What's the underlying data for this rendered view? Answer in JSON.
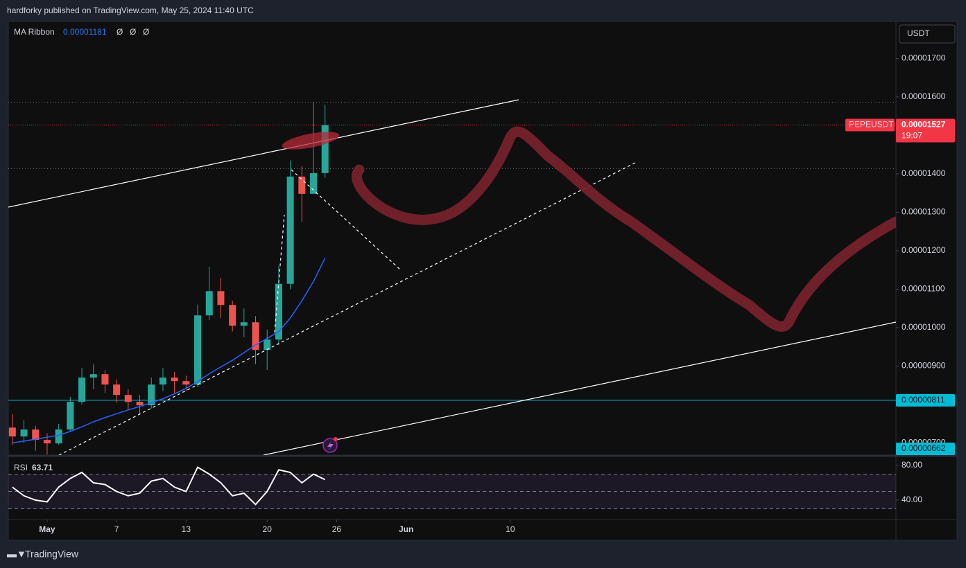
{
  "header": "hardforky published on TradingView.com, May 25, 2024 11:40 UTC",
  "footer": "TradingView",
  "currency": "USDT",
  "chart_data": [
    {
      "type": "candlestick",
      "x": [
        -2,
        -1,
        0,
        1,
        2,
        3,
        4,
        5,
        6,
        7,
        8,
        9,
        10,
        11,
        12,
        13,
        14,
        15,
        16,
        17,
        18,
        19,
        20,
        21,
        22,
        23,
        24,
        25
      ],
      "xlim": [
        -2.35,
        74.3
      ],
      "xticks": [
        {
          "value": 1,
          "label": "May"
        },
        7,
        13,
        20,
        26,
        {
          "value": 32,
          "label": "Jun"
        },
        {
          "value": 41,
          "label": "10"
        }
      ],
      "ylim": [
        6.685e-06,
        1.7964e-05
      ],
      "yticks": [
        {
          "value": 7e-06,
          "label": "0.00000700"
        },
        {
          "value": 9e-06,
          "label": "0.00000900"
        },
        {
          "value": 1e-05,
          "label": "0.00001000"
        },
        {
          "value": 1.1e-05,
          "label": "0.00001100"
        },
        {
          "value": 1.2e-05,
          "label": "0.00001200"
        },
        {
          "value": 1.3e-05,
          "label": "0.00001300"
        },
        {
          "value": 1.4e-05,
          "label": "0.00001400"
        },
        {
          "value": 1.6e-05,
          "label": "0.00001600"
        },
        {
          "value": 1.7e-05,
          "label": "0.00001700"
        }
      ],
      "up_color": "#26a69a",
      "down_color": "#ef5350",
      "series": [
        {
          "name": "PEPEUSDT",
          "color": "#f23645",
          "open": [
            7.4e-06,
            7.17e-06,
            7.35e-06,
            7.08e-06,
            6.99e-06,
            7.35e-06,
            8.07e-06,
            8.7e-06,
            8.79e-06,
            8.52e-06,
            8.25e-06,
            8.07e-06,
            7.98e-06,
            8.52e-06,
            8.7e-06,
            8.61e-06,
            8.52e-06,
            1.032e-05,
            1.095e-05,
            1.059e-05,
            1.005e-05,
            1.014e-05,
            9.42e-06,
            9.69e-06,
            1.114e-05,
            1.393e-05,
            1.348e-05,
            1.402e-05
          ],
          "high": [
            7.75e-06,
            7.6e-06,
            7.45e-06,
            7.25e-06,
            7.5e-06,
            8.2e-06,
            8.95e-06,
            9.05e-06,
            8.9e-06,
            8.65e-06,
            8.4e-06,
            8.25e-06,
            8.7e-06,
            8.95e-06,
            8.85e-06,
            8.75e-06,
            1.06e-05,
            1.159e-05,
            1.13e-05,
            1.07e-05,
            1.05e-05,
            1.03e-05,
            9.95e-06,
            1.16e-05,
            1.435e-05,
            1.42e-05,
            1.587e-05,
            1.58e-05
          ],
          "low": [
            6.95e-06,
            7e-06,
            6.8e-06,
            6.7e-06,
            6.95e-06,
            7.3e-06,
            8e-06,
            8.4e-06,
            8.3e-06,
            8.05e-06,
            7.85e-06,
            7.75e-06,
            7.9e-06,
            8.35e-06,
            8.3e-06,
            8.35e-06,
            8.45e-06,
            1.02e-05,
            1.025e-05,
            9.9e-06,
            9.75e-06,
            9.05e-06,
            8.9e-06,
            9.55e-06,
            1.1e-05,
            1.275e-05,
            1.35e-05,
            1.39e-05
          ],
          "close": [
            7.17e-06,
            7.35e-06,
            7.08e-06,
            6.99e-06,
            7.35e-06,
            8.07e-06,
            8.7e-06,
            8.79e-06,
            8.52e-06,
            8.25e-06,
            8.07e-06,
            7.98e-06,
            8.52e-06,
            8.7e-06,
            8.61e-06,
            8.52e-06,
            1.032e-05,
            1.095e-05,
            1.059e-05,
            1.005e-05,
            1.014e-05,
            9.42e-06,
            9.69e-06,
            1.114e-05,
            1.393e-05,
            1.348e-05,
            1.402e-05,
            1.527e-05
          ],
          "countdown": "19:07"
        },
        {
          "name": "MA Ribbon",
          "color": "#2962ff",
          "values": [
            7e-06,
            7.05e-06,
            7.1e-06,
            7.15e-06,
            7.2e-06,
            7.3e-06,
            7.42e-06,
            7.55e-06,
            7.66e-06,
            7.76e-06,
            7.86e-06,
            7.95e-06,
            8.05e-06,
            8.15e-06,
            8.28e-06,
            8.42e-06,
            8.6e-06,
            8.8e-06,
            8.98e-06,
            9.15e-06,
            9.35e-06,
            9.55e-06,
            9.72e-06,
            9.9e-06,
            1.025e-05,
            1.07e-05,
            1.12e-05,
            1.181e-05
          ],
          "other_values": [
            "Ø",
            "Ø",
            "Ø"
          ]
        }
      ],
      "price_labels": [
        {
          "value": 8.11e-06,
          "color": "#00bcd4"
        },
        {
          "value": 6.62e-06,
          "color": "#00bcd4"
        }
      ],
      "dotted_levels": [
        1.586e-05,
        1.414e-05
      ]
    },
    {
      "type": "line",
      "title": "RSI",
      "color": "#ffffff",
      "x": [
        -2,
        -1,
        0,
        1,
        2,
        3,
        4,
        5,
        6,
        7,
        8,
        9,
        10,
        11,
        12,
        13,
        14,
        15,
        16,
        17,
        18,
        19,
        20,
        21,
        22,
        23,
        24,
        25
      ],
      "values": [
        55,
        45,
        40,
        38,
        55,
        65,
        72,
        60,
        58,
        50,
        45,
        48,
        62,
        65,
        55,
        50,
        78,
        70,
        60,
        45,
        48,
        35,
        50,
        75,
        72,
        60,
        70,
        63.71
      ],
      "ylim": [
        17.6,
        89.6
      ],
      "yticks": [
        {
          "value": 80,
          "label": "80.00"
        },
        {
          "value": 40,
          "label": "40.00"
        }
      ],
      "bands": [
        70,
        50,
        30
      ]
    }
  ]
}
